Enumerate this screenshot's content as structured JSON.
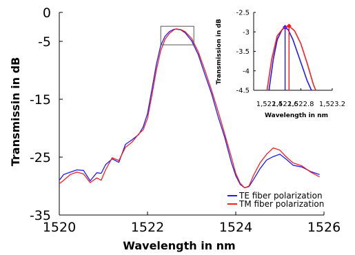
{
  "chart_data": [
    {
      "type": "line",
      "title": "",
      "xlabel": "Wavelength in nm",
      "ylabel": "Transmissin in dB",
      "xlim": [
        1520,
        1526
      ],
      "ylim": [
        -35,
        0
      ],
      "xticks": [
        1520,
        1522,
        1524,
        1526
      ],
      "xtick_labels": [
        "1520",
        "1522",
        "1524",
        "1526"
      ],
      "yticks": [
        0,
        -5,
        -15,
        -25,
        -35
      ],
      "ytick_labels": [
        "0",
        "-5",
        "-15",
        "-25",
        "-35"
      ],
      "grid": false,
      "legend_position": "bottom-right",
      "zoom_box": {
        "x": [
          1522.3,
          1523.05
        ],
        "y": [
          -5.6,
          -2.4
        ]
      },
      "series": [
        {
          "name": "TE  fiber polarization",
          "color": "#1a1aff",
          "x": [
            1520.0,
            1520.1,
            1520.25,
            1520.4,
            1520.55,
            1520.7,
            1520.85,
            1520.95,
            1521.05,
            1521.2,
            1521.35,
            1521.5,
            1521.65,
            1521.8,
            1521.9,
            1522.0,
            1522.1,
            1522.2,
            1522.3,
            1522.4,
            1522.5,
            1522.6,
            1522.65,
            1522.75,
            1522.85,
            1523.0,
            1523.15,
            1523.3,
            1523.45,
            1523.6,
            1523.75,
            1523.9,
            1524.0,
            1524.1,
            1524.2,
            1524.3,
            1524.4,
            1524.55,
            1524.7,
            1524.85,
            1525.0,
            1525.15,
            1525.3,
            1525.5,
            1525.7,
            1525.9
          ],
          "y": [
            -29.0,
            -28.0,
            -27.6,
            -27.2,
            -27.3,
            -29.1,
            -27.7,
            -27.8,
            -26.3,
            -25.3,
            -25.9,
            -22.8,
            -22.0,
            -21.1,
            -19.8,
            -17.5,
            -13.3,
            -9.0,
            -5.7,
            -4.1,
            -3.3,
            -2.9,
            -2.9,
            -3.0,
            -3.5,
            -4.9,
            -7.3,
            -10.7,
            -14.0,
            -18.0,
            -21.6,
            -25.9,
            -28.2,
            -29.7,
            -30.3,
            -30.1,
            -28.9,
            -27.0,
            -25.5,
            -24.9,
            -24.5,
            -25.4,
            -26.4,
            -26.7,
            -27.5,
            -28.0
          ]
        },
        {
          "name": "TM  fiber polarization",
          "color": "#ff1a1a",
          "x": [
            1520.0,
            1520.1,
            1520.25,
            1520.4,
            1520.55,
            1520.7,
            1520.85,
            1520.95,
            1521.05,
            1521.2,
            1521.35,
            1521.5,
            1521.65,
            1521.8,
            1521.9,
            1522.0,
            1522.1,
            1522.2,
            1522.3,
            1522.4,
            1522.5,
            1522.6,
            1522.65,
            1522.75,
            1522.85,
            1523.0,
            1523.15,
            1523.3,
            1523.45,
            1523.6,
            1523.75,
            1523.9,
            1524.0,
            1524.1,
            1524.2,
            1524.3,
            1524.4,
            1524.55,
            1524.7,
            1524.85,
            1525.0,
            1525.15,
            1525.3,
            1525.5,
            1525.7,
            1525.9
          ],
          "y": [
            -29.6,
            -29.0,
            -28.0,
            -27.6,
            -27.9,
            -29.4,
            -28.6,
            -29.0,
            -27.2,
            -25.1,
            -25.6,
            -23.3,
            -22.4,
            -21.0,
            -20.3,
            -18.3,
            -14.3,
            -10.0,
            -6.6,
            -4.6,
            -3.6,
            -3.0,
            -2.85,
            -2.95,
            -3.3,
            -4.5,
            -6.8,
            -10.0,
            -13.4,
            -17.1,
            -21.0,
            -25.0,
            -27.8,
            -29.5,
            -30.3,
            -30.0,
            -28.2,
            -26.0,
            -24.5,
            -23.4,
            -23.8,
            -25.0,
            -26.0,
            -26.5,
            -27.6,
            -28.4
          ]
        }
      ]
    },
    {
      "type": "line",
      "title": "",
      "xlabel": "Wavelength in nm",
      "ylabel": "Transmission in dB",
      "xlim": [
        1522.2,
        1523.2
      ],
      "ylim": [
        -4.5,
        -2.5
      ],
      "xticks": [
        1522.4,
        1522.6,
        1522.8,
        1523.2
      ],
      "xtick_labels": [
        "1,522.4",
        "1,522.6",
        "1,522.8",
        "1,523.2"
      ],
      "yticks": [
        -2.5,
        -3,
        -3.5,
        -4,
        -4.5
      ],
      "ytick_labels": [
        "-2.5",
        "-3",
        "-3.5",
        "-4",
        "-4.5"
      ],
      "grid": false,
      "series": [
        {
          "name": "TE  fiber polarization",
          "color": "#1a1aff",
          "x": [
            1522.395,
            1522.45,
            1522.5,
            1522.56,
            1522.6,
            1522.64,
            1522.7,
            1522.76,
            1522.82,
            1522.88,
            1522.935
          ],
          "y": [
            -4.5,
            -3.7,
            -3.2,
            -2.95,
            -2.88,
            -2.95,
            -3.2,
            -3.55,
            -3.9,
            -4.25,
            -4.5
          ],
          "marker": {
            "x": 1522.6,
            "y": -2.88
          }
        },
        {
          "name": "TM  fiber polarization",
          "color": "#ff1a1a",
          "x": [
            1522.37,
            1522.43,
            1522.5,
            1522.58,
            1522.65,
            1522.72,
            1522.8,
            1522.88,
            1522.96,
            1522.99
          ],
          "y": [
            -4.5,
            -3.7,
            -3.1,
            -2.9,
            -2.85,
            -2.97,
            -3.3,
            -3.8,
            -4.35,
            -4.5
          ],
          "marker": {
            "x": 1522.65,
            "y": -2.85
          }
        }
      ]
    }
  ]
}
